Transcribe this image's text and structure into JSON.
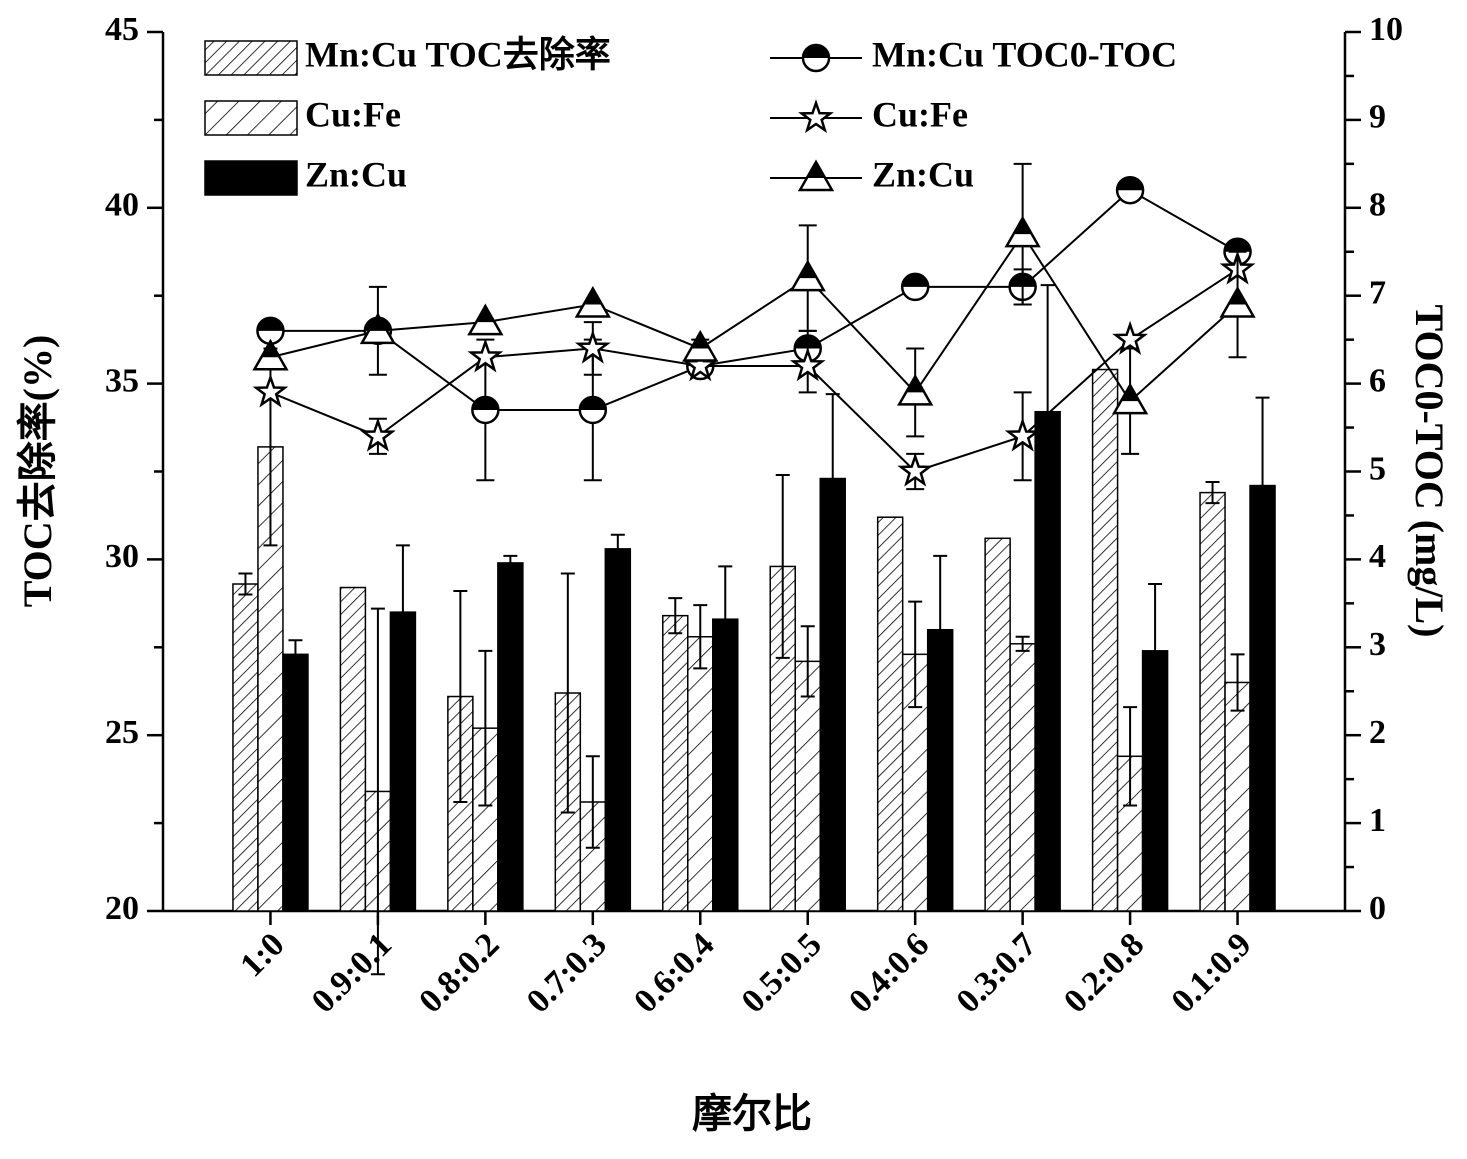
{
  "chart_data": {
    "type": "bar",
    "categories": [
      "1:0",
      "0.9:0.1",
      "0.8:0.2",
      "0.7:0.3",
      "0.6:0.4",
      "0.5:0.5",
      "0.4:0.6",
      "0.3:0.7",
      "0.2:0.8",
      "0.1:0.9"
    ],
    "xlabel": "摩尔比",
    "ylabel": "TOC去除率(%)",
    "y2label": "TOC0-TOC (mg/L)",
    "ylim": [
      20,
      45
    ],
    "yticks": [
      20,
      25,
      30,
      35,
      40,
      45
    ],
    "y2lim": [
      0,
      10
    ],
    "y2ticks": [
      0,
      1,
      2,
      3,
      4,
      5,
      6,
      7,
      8,
      9,
      10
    ],
    "series": [
      {
        "name": "Mn:Cu TOC去除率",
        "type": "bar",
        "pattern": "hatch-fine",
        "color": "#000000",
        "values": [
          29.3,
          29.2,
          26.1,
          26.2,
          28.4,
          29.8,
          31.2,
          30.6,
          35.4,
          31.9
        ],
        "errors": [
          0.3,
          0,
          3.0,
          3.4,
          0.5,
          2.6,
          0,
          0,
          0,
          0.3
        ]
      },
      {
        "name": "Cu:Fe",
        "type": "bar",
        "pattern": "hatch-coarse",
        "color": "#000000",
        "values": [
          33.2,
          23.4,
          25.2,
          23.1,
          27.8,
          27.1,
          27.3,
          27.6,
          24.4,
          26.5
        ],
        "errors": [
          2.8,
          5.2,
          2.2,
          1.3,
          0.9,
          1.0,
          1.5,
          0.2,
          1.4,
          0.8
        ]
      },
      {
        "name": "Zn:Cu",
        "type": "bar",
        "pattern": "solid",
        "color": "#000000",
        "values": [
          27.3,
          28.5,
          29.9,
          30.3,
          28.3,
          32.3,
          28.0,
          34.2,
          27.4,
          32.1
        ],
        "errors": [
          0.4,
          1.9,
          0.2,
          0.4,
          1.5,
          2.4,
          2.1,
          3.6,
          1.9,
          2.5
        ]
      },
      {
        "name": "Mn:Cu TOC0-TOC",
        "type": "line",
        "axis": "y2",
        "marker": "circle",
        "color": "#000000",
        "values": [
          6.6,
          6.6,
          5.7,
          5.7,
          6.2,
          6.4,
          7.1,
          7.1,
          8.2,
          7.5
        ],
        "errors": [
          0.1,
          0.1,
          0.8,
          0.8,
          0.1,
          0.2,
          0,
          0.2,
          0,
          0
        ]
      },
      {
        "name": "Cu:Fe",
        "type": "line",
        "axis": "y2",
        "marker": "star",
        "color": "#000000",
        "values": [
          5.9,
          5.4,
          6.3,
          6.4,
          6.2,
          6.2,
          5.0,
          5.4,
          6.5,
          7.3
        ],
        "errors": [
          0,
          0.2,
          0,
          0.3,
          0,
          0.3,
          0.2,
          0.5,
          0,
          0
        ]
      },
      {
        "name": "Zn:Cu",
        "type": "line",
        "axis": "y2",
        "marker": "triangle",
        "color": "#000000",
        "values": [
          6.3,
          6.6,
          6.7,
          6.9,
          6.4,
          7.2,
          5.9,
          7.7,
          5.8,
          6.9
        ],
        "errors": [
          0,
          0.5,
          0,
          0,
          0.1,
          0.6,
          0.5,
          0.8,
          0.6,
          0.6
        ]
      }
    ]
  }
}
